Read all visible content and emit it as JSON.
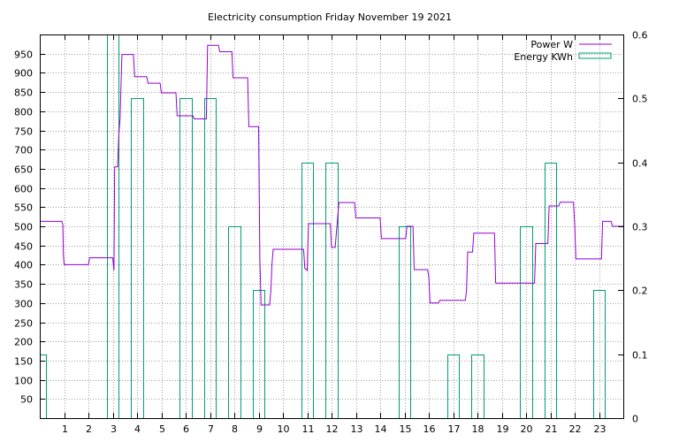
{
  "chart_data": {
    "type": "line",
    "title": "Electricity consumption Friday November 19 2021",
    "xlabel": "",
    "ylabel": "",
    "xlim": [
      0,
      24
    ],
    "ylim": [
      0,
      1000
    ],
    "y2lim": [
      0,
      0.6
    ],
    "grid": true,
    "legend_position": "top-right",
    "x_ticks": [
      "1",
      "2",
      "3",
      "4",
      "5",
      "6",
      "7",
      "8",
      "9",
      "10",
      "11",
      "12",
      "13",
      "14",
      "15",
      "16",
      "17",
      "18",
      "19",
      "20",
      "21",
      "22",
      "23"
    ],
    "y_ticks": [
      "50",
      "100",
      "150",
      "200",
      "250",
      "300",
      "350",
      "400",
      "450",
      "500",
      "550",
      "600",
      "650",
      "700",
      "750",
      "800",
      "850",
      "900",
      "950"
    ],
    "y2_ticks": [
      "0",
      "0.1",
      "0.2",
      "0.3",
      "0.4",
      "0.5",
      "0.6"
    ],
    "series": [
      {
        "name": "Power W",
        "axis": "left",
        "style": "step-line",
        "color": "#9400d3",
        "points": [
          [
            0,
            513
          ],
          [
            0.9,
            513
          ],
          [
            0.95,
            505
          ],
          [
            0.97,
            425
          ],
          [
            1.0,
            400
          ],
          [
            2.0,
            400
          ],
          [
            2.05,
            418
          ],
          [
            3.0,
            418
          ],
          [
            3.05,
            385
          ],
          [
            3.08,
            655
          ],
          [
            3.2,
            655
          ],
          [
            3.25,
            740
          ],
          [
            3.3,
            780
          ],
          [
            3.38,
            948
          ],
          [
            3.85,
            948
          ],
          [
            3.9,
            890
          ],
          [
            4.4,
            890
          ],
          [
            4.45,
            873
          ],
          [
            4.95,
            873
          ],
          [
            5.0,
            848
          ],
          [
            5.6,
            848
          ],
          [
            5.65,
            788
          ],
          [
            6.3,
            788
          ],
          [
            6.35,
            780
          ],
          [
            6.85,
            780
          ],
          [
            6.9,
            972
          ],
          [
            7.35,
            972
          ],
          [
            7.4,
            955
          ],
          [
            7.9,
            955
          ],
          [
            7.95,
            887
          ],
          [
            8.55,
            887
          ],
          [
            8.6,
            760
          ],
          [
            9.0,
            760
          ],
          [
            9.05,
            415
          ],
          [
            9.1,
            295
          ],
          [
            9.45,
            295
          ],
          [
            9.5,
            330
          ],
          [
            9.55,
            400
          ],
          [
            9.6,
            440
          ],
          [
            10.85,
            440
          ],
          [
            10.9,
            390
          ],
          [
            11.0,
            385
          ],
          [
            11.05,
            507
          ],
          [
            11.95,
            507
          ],
          [
            12.0,
            445
          ],
          [
            12.15,
            445
          ],
          [
            12.3,
            562
          ],
          [
            12.95,
            562
          ],
          [
            13.0,
            522
          ],
          [
            14.0,
            522
          ],
          [
            14.05,
            468
          ],
          [
            15.05,
            468
          ],
          [
            15.1,
            500
          ],
          [
            15.35,
            500
          ],
          [
            15.4,
            387
          ],
          [
            15.95,
            387
          ],
          [
            16.0,
            370
          ],
          [
            16.05,
            300
          ],
          [
            16.4,
            300
          ],
          [
            16.45,
            307
          ],
          [
            17.5,
            307
          ],
          [
            17.55,
            330
          ],
          [
            17.6,
            433
          ],
          [
            17.8,
            433
          ],
          [
            17.85,
            482
          ],
          [
            18.7,
            482
          ],
          [
            18.75,
            352
          ],
          [
            20.35,
            352
          ],
          [
            20.4,
            455
          ],
          [
            20.9,
            455
          ],
          [
            20.95,
            553
          ],
          [
            21.35,
            553
          ],
          [
            21.4,
            563
          ],
          [
            21.95,
            563
          ],
          [
            22.0,
            505
          ],
          [
            22.05,
            415
          ],
          [
            23.1,
            415
          ],
          [
            23.15,
            513
          ],
          [
            23.5,
            513
          ],
          [
            23.55,
            500
          ],
          [
            24,
            500
          ]
        ]
      },
      {
        "name": "Energy KWh",
        "axis": "right",
        "style": "bars",
        "color": "#009e73",
        "bars": [
          {
            "x": 0,
            "value": 0.1
          },
          {
            "x": 1,
            "value": 0
          },
          {
            "x": 2,
            "value": 0
          },
          {
            "x": 3,
            "value": 0.6
          },
          {
            "x": 4,
            "value": 0.5
          },
          {
            "x": 5,
            "value": 0
          },
          {
            "x": 6,
            "value": 0.5
          },
          {
            "x": 7,
            "value": 0.5
          },
          {
            "x": 8,
            "value": 0.3
          },
          {
            "x": 9,
            "value": 0.2
          },
          {
            "x": 10,
            "value": 0
          },
          {
            "x": 11,
            "value": 0.4
          },
          {
            "x": 12,
            "value": 0.4
          },
          {
            "x": 13,
            "value": 0
          },
          {
            "x": 14,
            "value": 0
          },
          {
            "x": 15,
            "value": 0.3
          },
          {
            "x": 16,
            "value": 0
          },
          {
            "x": 17,
            "value": 0.1
          },
          {
            "x": 18,
            "value": 0.1
          },
          {
            "x": 19,
            "value": 0
          },
          {
            "x": 20,
            "value": 0.3
          },
          {
            "x": 21,
            "value": 0.4
          },
          {
            "x": 22,
            "value": 0
          },
          {
            "x": 23,
            "value": 0.2
          }
        ]
      }
    ]
  }
}
